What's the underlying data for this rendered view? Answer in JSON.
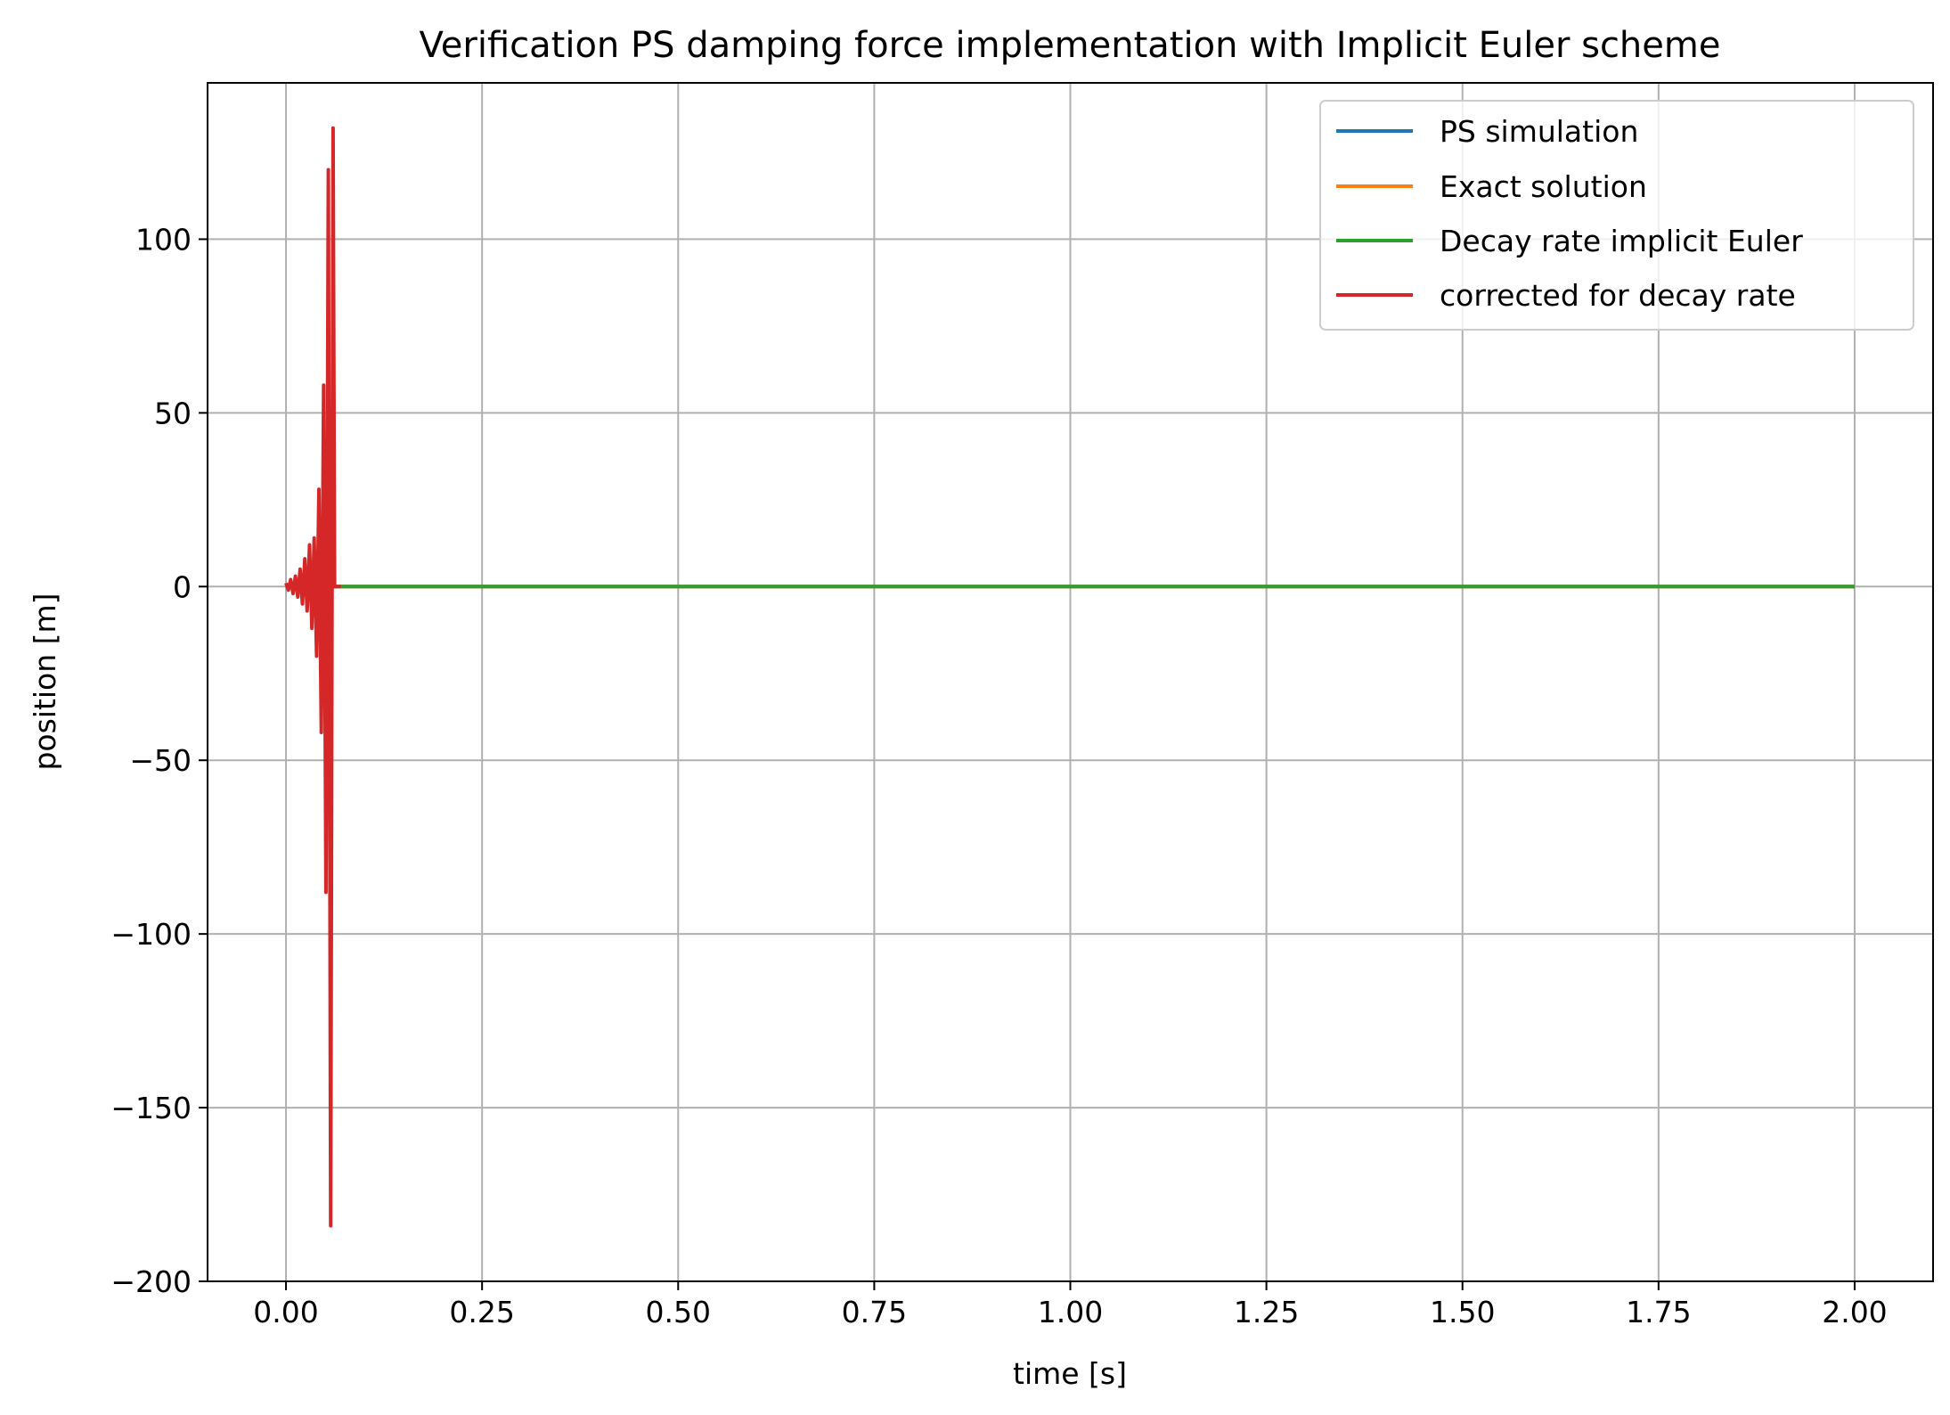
{
  "chart_data": {
    "type": "line",
    "title": "Verification PS damping force implementation with Implicit Euler scheme",
    "xlabel": "time [s]",
    "ylabel": "position [m]",
    "xlim": [
      -0.1,
      2.1
    ],
    "ylim": [
      -200,
      145
    ],
    "xticks": [
      0.0,
      0.25,
      0.5,
      0.75,
      1.0,
      1.25,
      1.5,
      1.75,
      2.0
    ],
    "xtick_labels": [
      "0.00",
      "0.25",
      "0.50",
      "0.75",
      "1.00",
      "1.25",
      "1.50",
      "1.75",
      "2.00"
    ],
    "yticks": [
      100,
      50,
      0,
      -50,
      -100,
      -150,
      -200
    ],
    "ytick_labels": [
      "100",
      "50",
      "0",
      "−50",
      "−100",
      "−150",
      "−200"
    ],
    "grid": true,
    "legend_position": "top-right",
    "series": [
      {
        "name": "PS simulation",
        "color": "#1f77b4",
        "x": [
          0.0,
          0.2,
          0.5,
          1.0,
          1.5,
          2.0
        ],
        "y": [
          0,
          0,
          0,
          0,
          0,
          0
        ]
      },
      {
        "name": "Exact solution",
        "color": "#ff7f0e",
        "x": [
          0.0,
          0.2,
          0.5,
          1.0,
          1.5,
          2.0
        ],
        "y": [
          0,
          0,
          0,
          0,
          0,
          0
        ]
      },
      {
        "name": "Decay rate implicit Euler",
        "color": "#2ca02c",
        "x": [
          0.0,
          0.2,
          0.5,
          1.0,
          1.5,
          2.0
        ],
        "y": [
          0,
          0,
          0,
          0,
          0,
          0
        ]
      },
      {
        "name": "corrected for decay rate",
        "color": "#d62728",
        "x": [
          0.0,
          0.003,
          0.006,
          0.009,
          0.012,
          0.015,
          0.018,
          0.021,
          0.024,
          0.027,
          0.03,
          0.033,
          0.036,
          0.039,
          0.042,
          0.045,
          0.048,
          0.051,
          0.054,
          0.057,
          0.06,
          0.062,
          0.064,
          0.066,
          0.068,
          0.07
        ],
        "y": [
          1,
          -1,
          2,
          -2,
          3,
          -3,
          5,
          -5,
          8,
          -7,
          12,
          -12,
          14,
          -20,
          28,
          -42,
          58,
          -88,
          120,
          -184,
          132,
          0,
          0,
          0,
          0,
          0
        ]
      }
    ]
  }
}
